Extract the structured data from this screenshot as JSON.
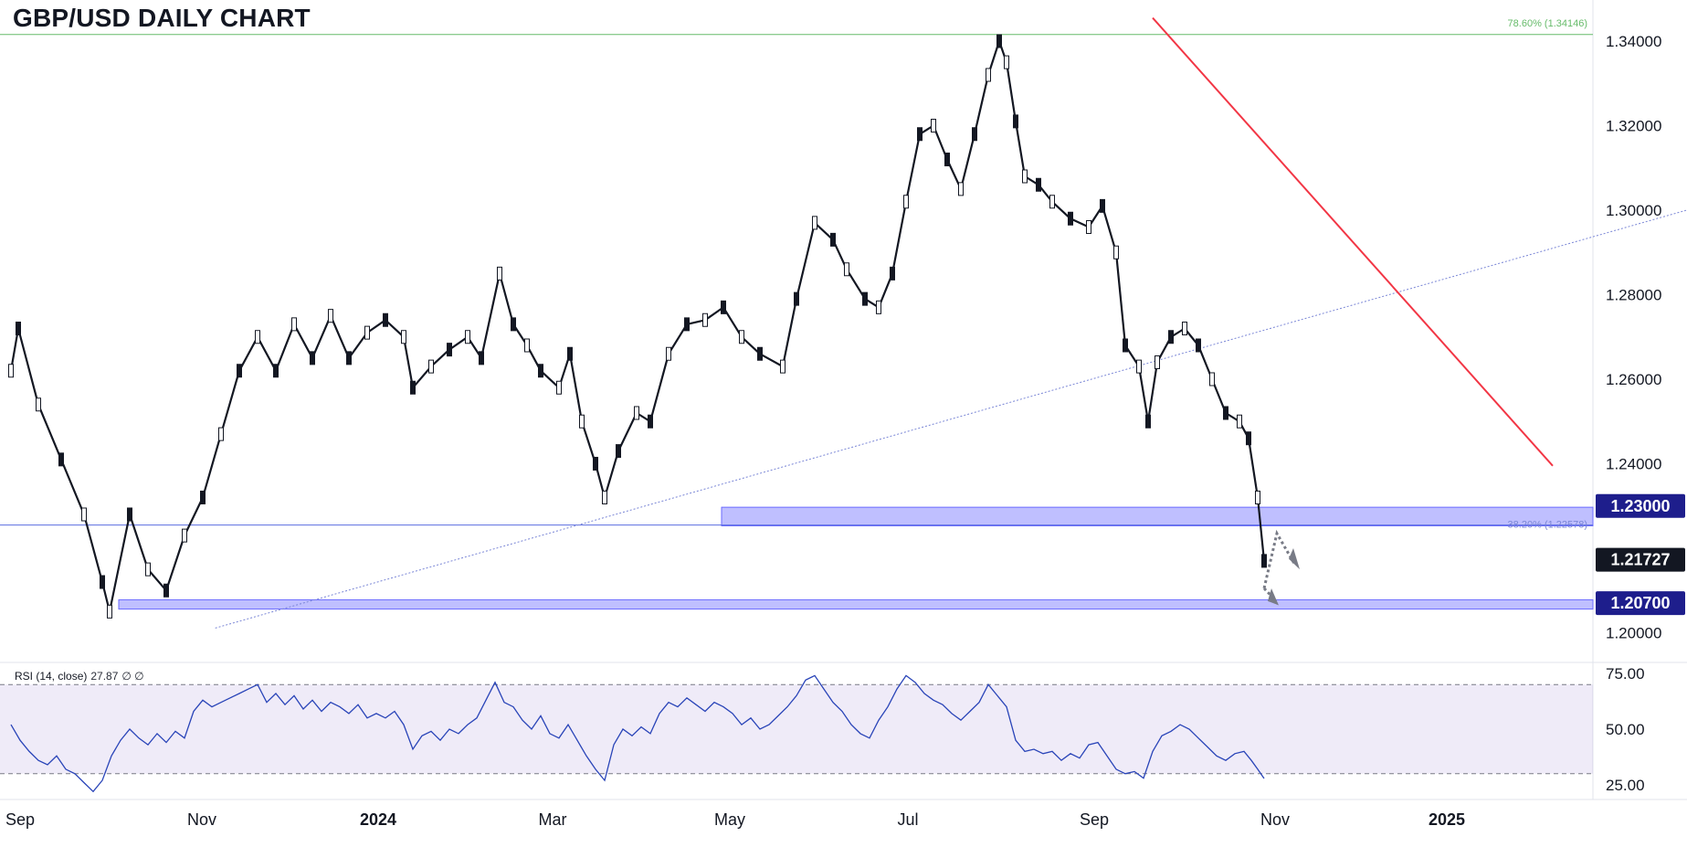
{
  "title": "GBP/USD DAILY CHART",
  "chart_data": {
    "type": "candlestick",
    "symbol": "GBP/USD",
    "timeframe": "Daily",
    "ylim": [
      1.19,
      1.35
    ],
    "y_ticks": [
      "1.34000",
      "1.32000",
      "1.30000",
      "1.28000",
      "1.26000",
      "1.24000",
      "1.20000"
    ],
    "x_ticks": [
      {
        "label": "Sep",
        "bold": false
      },
      {
        "label": "Nov",
        "bold": false
      },
      {
        "label": "2024",
        "bold": true
      },
      {
        "label": "Mar",
        "bold": false
      },
      {
        "label": "May",
        "bold": false
      },
      {
        "label": "Jul",
        "bold": false
      },
      {
        "label": "Sep",
        "bold": false
      },
      {
        "label": "Nov",
        "bold": false
      },
      {
        "label": "2025",
        "bold": true
      }
    ],
    "key_levels": [
      {
        "value": 1.23,
        "label": "1.23000",
        "zone": [
          1.2253,
          1.2297
        ],
        "color": "#1e1e8c"
      },
      {
        "value": 1.207,
        "label": "1.20700",
        "zone": [
          1.2056,
          1.2078
        ],
        "color": "#1e1e8c"
      }
    ],
    "last_price": {
      "value": 1.21727,
      "label": "1.21727"
    },
    "fibonacci": [
      {
        "level": "78.60%",
        "value": 1.34146,
        "label": "78.60% (1.34146)",
        "color": "#66bb6a"
      },
      {
        "level": "38.20%",
        "value": 1.22578,
        "label": "38.20% (1.22578)",
        "color": "#7a86d6"
      }
    ],
    "trendline": {
      "color": "#f23645",
      "from_price": 1.3455,
      "to_price": 1.2395
    },
    "anchors": [
      {
        "date": "2023-10-03",
        "price": 1.2037
      },
      {
        "date": "2024-09-26",
        "price": 1.3434
      },
      {
        "date": "2025-01-13",
        "price": 1.21
      }
    ],
    "series_path": [
      [
        0,
        1.262
      ],
      [
        8,
        1.272
      ],
      [
        30,
        1.254
      ],
      [
        55,
        1.241
      ],
      [
        80,
        1.228
      ],
      [
        100,
        1.212
      ],
      [
        108,
        1.205
      ],
      [
        130,
        1.228
      ],
      [
        150,
        1.215
      ],
      [
        170,
        1.21
      ],
      [
        190,
        1.223
      ],
      [
        210,
        1.232
      ],
      [
        230,
        1.247
      ],
      [
        250,
        1.262
      ],
      [
        270,
        1.27
      ],
      [
        290,
        1.262
      ],
      [
        310,
        1.273
      ],
      [
        330,
        1.265
      ],
      [
        350,
        1.275
      ],
      [
        370,
        1.265
      ],
      [
        390,
        1.271
      ],
      [
        410,
        1.274
      ],
      [
        430,
        1.27
      ],
      [
        440,
        1.258
      ],
      [
        460,
        1.263
      ],
      [
        480,
        1.267
      ],
      [
        500,
        1.27
      ],
      [
        515,
        1.265
      ],
      [
        535,
        1.285
      ],
      [
        550,
        1.273
      ],
      [
        565,
        1.268
      ],
      [
        580,
        1.262
      ],
      [
        600,
        1.258
      ],
      [
        612,
        1.266
      ],
      [
        625,
        1.25
      ],
      [
        640,
        1.24
      ],
      [
        650,
        1.232
      ],
      [
        665,
        1.243
      ],
      [
        685,
        1.252
      ],
      [
        700,
        1.25
      ],
      [
        720,
        1.266
      ],
      [
        740,
        1.273
      ],
      [
        760,
        1.274
      ],
      [
        780,
        1.277
      ],
      [
        800,
        1.27
      ],
      [
        820,
        1.266
      ],
      [
        845,
        1.263
      ],
      [
        860,
        1.279
      ],
      [
        880,
        1.297
      ],
      [
        900,
        1.293
      ],
      [
        915,
        1.286
      ],
      [
        935,
        1.279
      ],
      [
        950,
        1.277
      ],
      [
        965,
        1.285
      ],
      [
        980,
        1.302
      ],
      [
        995,
        1.318
      ],
      [
        1010,
        1.32
      ],
      [
        1025,
        1.312
      ],
      [
        1040,
        1.305
      ],
      [
        1055,
        1.318
      ],
      [
        1070,
        1.332
      ],
      [
        1082,
        1.34
      ],
      [
        1090,
        1.335
      ],
      [
        1100,
        1.321
      ],
      [
        1110,
        1.308
      ],
      [
        1125,
        1.306
      ],
      [
        1140,
        1.302
      ],
      [
        1160,
        1.298
      ],
      [
        1180,
        1.296
      ],
      [
        1195,
        1.301
      ],
      [
        1210,
        1.29
      ],
      [
        1220,
        1.268
      ],
      [
        1235,
        1.263
      ],
      [
        1245,
        1.25
      ],
      [
        1255,
        1.264
      ],
      [
        1270,
        1.27
      ],
      [
        1285,
        1.272
      ],
      [
        1300,
        1.268
      ],
      [
        1315,
        1.26
      ],
      [
        1330,
        1.252
      ],
      [
        1345,
        1.25
      ],
      [
        1355,
        1.246
      ],
      [
        1365,
        1.232
      ],
      [
        1372,
        1.217
      ]
    ]
  },
  "rsi": {
    "label": "RSI (14, close)",
    "value": "27.87",
    "extra": "∅ ∅",
    "ticks": [
      "75.00",
      "50.00",
      "25.00"
    ],
    "upper": 70,
    "lower": 30,
    "ylim": [
      18,
      80
    ],
    "path": [
      [
        0,
        52
      ],
      [
        10,
        45
      ],
      [
        20,
        40
      ],
      [
        30,
        36
      ],
      [
        40,
        34
      ],
      [
        50,
        38
      ],
      [
        60,
        32
      ],
      [
        70,
        30
      ],
      [
        80,
        26
      ],
      [
        90,
        22
      ],
      [
        100,
        27
      ],
      [
        110,
        38
      ],
      [
        120,
        45
      ],
      [
        130,
        50
      ],
      [
        140,
        46
      ],
      [
        150,
        43
      ],
      [
        160,
        48
      ],
      [
        170,
        44
      ],
      [
        180,
        49
      ],
      [
        190,
        46
      ],
      [
        200,
        58
      ],
      [
        210,
        63
      ],
      [
        220,
        60
      ],
      [
        230,
        62
      ],
      [
        240,
        64
      ],
      [
        250,
        66
      ],
      [
        260,
        68
      ],
      [
        270,
        70
      ],
      [
        280,
        62
      ],
      [
        290,
        66
      ],
      [
        300,
        61
      ],
      [
        310,
        65
      ],
      [
        320,
        59
      ],
      [
        330,
        63
      ],
      [
        340,
        58
      ],
      [
        350,
        62
      ],
      [
        360,
        60
      ],
      [
        370,
        57
      ],
      [
        380,
        61
      ],
      [
        390,
        55
      ],
      [
        400,
        57
      ],
      [
        410,
        55
      ],
      [
        420,
        58
      ],
      [
        430,
        52
      ],
      [
        440,
        41
      ],
      [
        450,
        47
      ],
      [
        460,
        49
      ],
      [
        470,
        45
      ],
      [
        480,
        50
      ],
      [
        490,
        48
      ],
      [
        500,
        52
      ],
      [
        510,
        55
      ],
      [
        520,
        63
      ],
      [
        530,
        71
      ],
      [
        540,
        62
      ],
      [
        550,
        60
      ],
      [
        560,
        54
      ],
      [
        570,
        50
      ],
      [
        580,
        56
      ],
      [
        590,
        48
      ],
      [
        600,
        46
      ],
      [
        610,
        52
      ],
      [
        620,
        45
      ],
      [
        630,
        38
      ],
      [
        640,
        32
      ],
      [
        650,
        27
      ],
      [
        660,
        43
      ],
      [
        670,
        50
      ],
      [
        680,
        47
      ],
      [
        690,
        51
      ],
      [
        700,
        48
      ],
      [
        710,
        57
      ],
      [
        720,
        62
      ],
      [
        730,
        60
      ],
      [
        740,
        64
      ],
      [
        750,
        61
      ],
      [
        760,
        58
      ],
      [
        770,
        62
      ],
      [
        780,
        60
      ],
      [
        790,
        57
      ],
      [
        800,
        52
      ],
      [
        810,
        55
      ],
      [
        820,
        50
      ],
      [
        830,
        52
      ],
      [
        840,
        56
      ],
      [
        850,
        60
      ],
      [
        860,
        65
      ],
      [
        870,
        72
      ],
      [
        880,
        74
      ],
      [
        890,
        68
      ],
      [
        900,
        62
      ],
      [
        910,
        58
      ],
      [
        920,
        52
      ],
      [
        930,
        48
      ],
      [
        940,
        46
      ],
      [
        950,
        54
      ],
      [
        960,
        60
      ],
      [
        970,
        68
      ],
      [
        980,
        74
      ],
      [
        990,
        71
      ],
      [
        1000,
        66
      ],
      [
        1010,
        63
      ],
      [
        1020,
        61
      ],
      [
        1030,
        57
      ],
      [
        1040,
        54
      ],
      [
        1050,
        58
      ],
      [
        1060,
        62
      ],
      [
        1070,
        70
      ],
      [
        1080,
        65
      ],
      [
        1090,
        60
      ],
      [
        1100,
        45
      ],
      [
        1110,
        40
      ],
      [
        1120,
        41
      ],
      [
        1130,
        39
      ],
      [
        1140,
        40
      ],
      [
        1150,
        36
      ],
      [
        1160,
        39
      ],
      [
        1170,
        37
      ],
      [
        1180,
        43
      ],
      [
        1190,
        44
      ],
      [
        1200,
        38
      ],
      [
        1210,
        32
      ],
      [
        1220,
        30
      ],
      [
        1230,
        31
      ],
      [
        1240,
        28
      ],
      [
        1250,
        40
      ],
      [
        1260,
        47
      ],
      [
        1270,
        49
      ],
      [
        1280,
        52
      ],
      [
        1290,
        50
      ],
      [
        1300,
        46
      ],
      [
        1310,
        42
      ],
      [
        1320,
        38
      ],
      [
        1330,
        36
      ],
      [
        1340,
        39
      ],
      [
        1350,
        40
      ],
      [
        1358,
        36
      ],
      [
        1365,
        32
      ],
      [
        1372,
        27.87
      ]
    ]
  }
}
